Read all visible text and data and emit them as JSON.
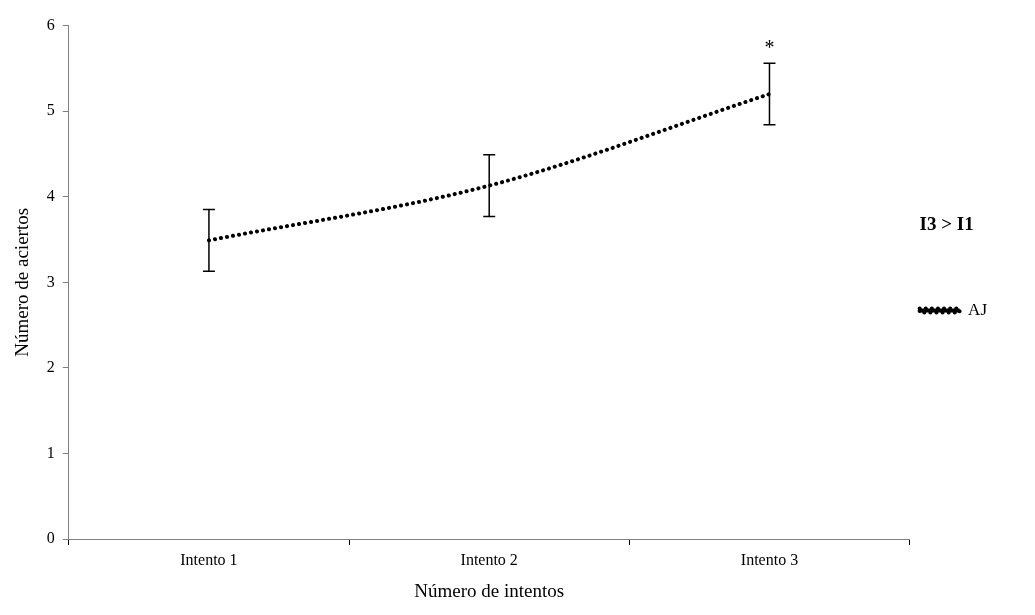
{
  "chart_data": {
    "type": "line",
    "xlabel": "Número de intentos",
    "ylabel": "Número de aciertos",
    "categories": [
      "Intento 1",
      "Intento 2",
      "Intento 3"
    ],
    "series": [
      {
        "name": "AJ",
        "color": "#000000",
        "values": [
          3.49,
          4.13,
          5.2
        ],
        "errors": [
          0.36,
          0.36,
          0.36
        ]
      }
    ],
    "ylim": [
      0,
      6
    ],
    "yticks": [
      0,
      1,
      2,
      3,
      4,
      5,
      6
    ],
    "grid": false,
    "legend": "right",
    "marker": "none",
    "line_style": "dotted",
    "annotations": [
      {
        "text": "*",
        "x": "Intento 3",
        "y": 5.56
      },
      "I3 > I1"
    ]
  }
}
